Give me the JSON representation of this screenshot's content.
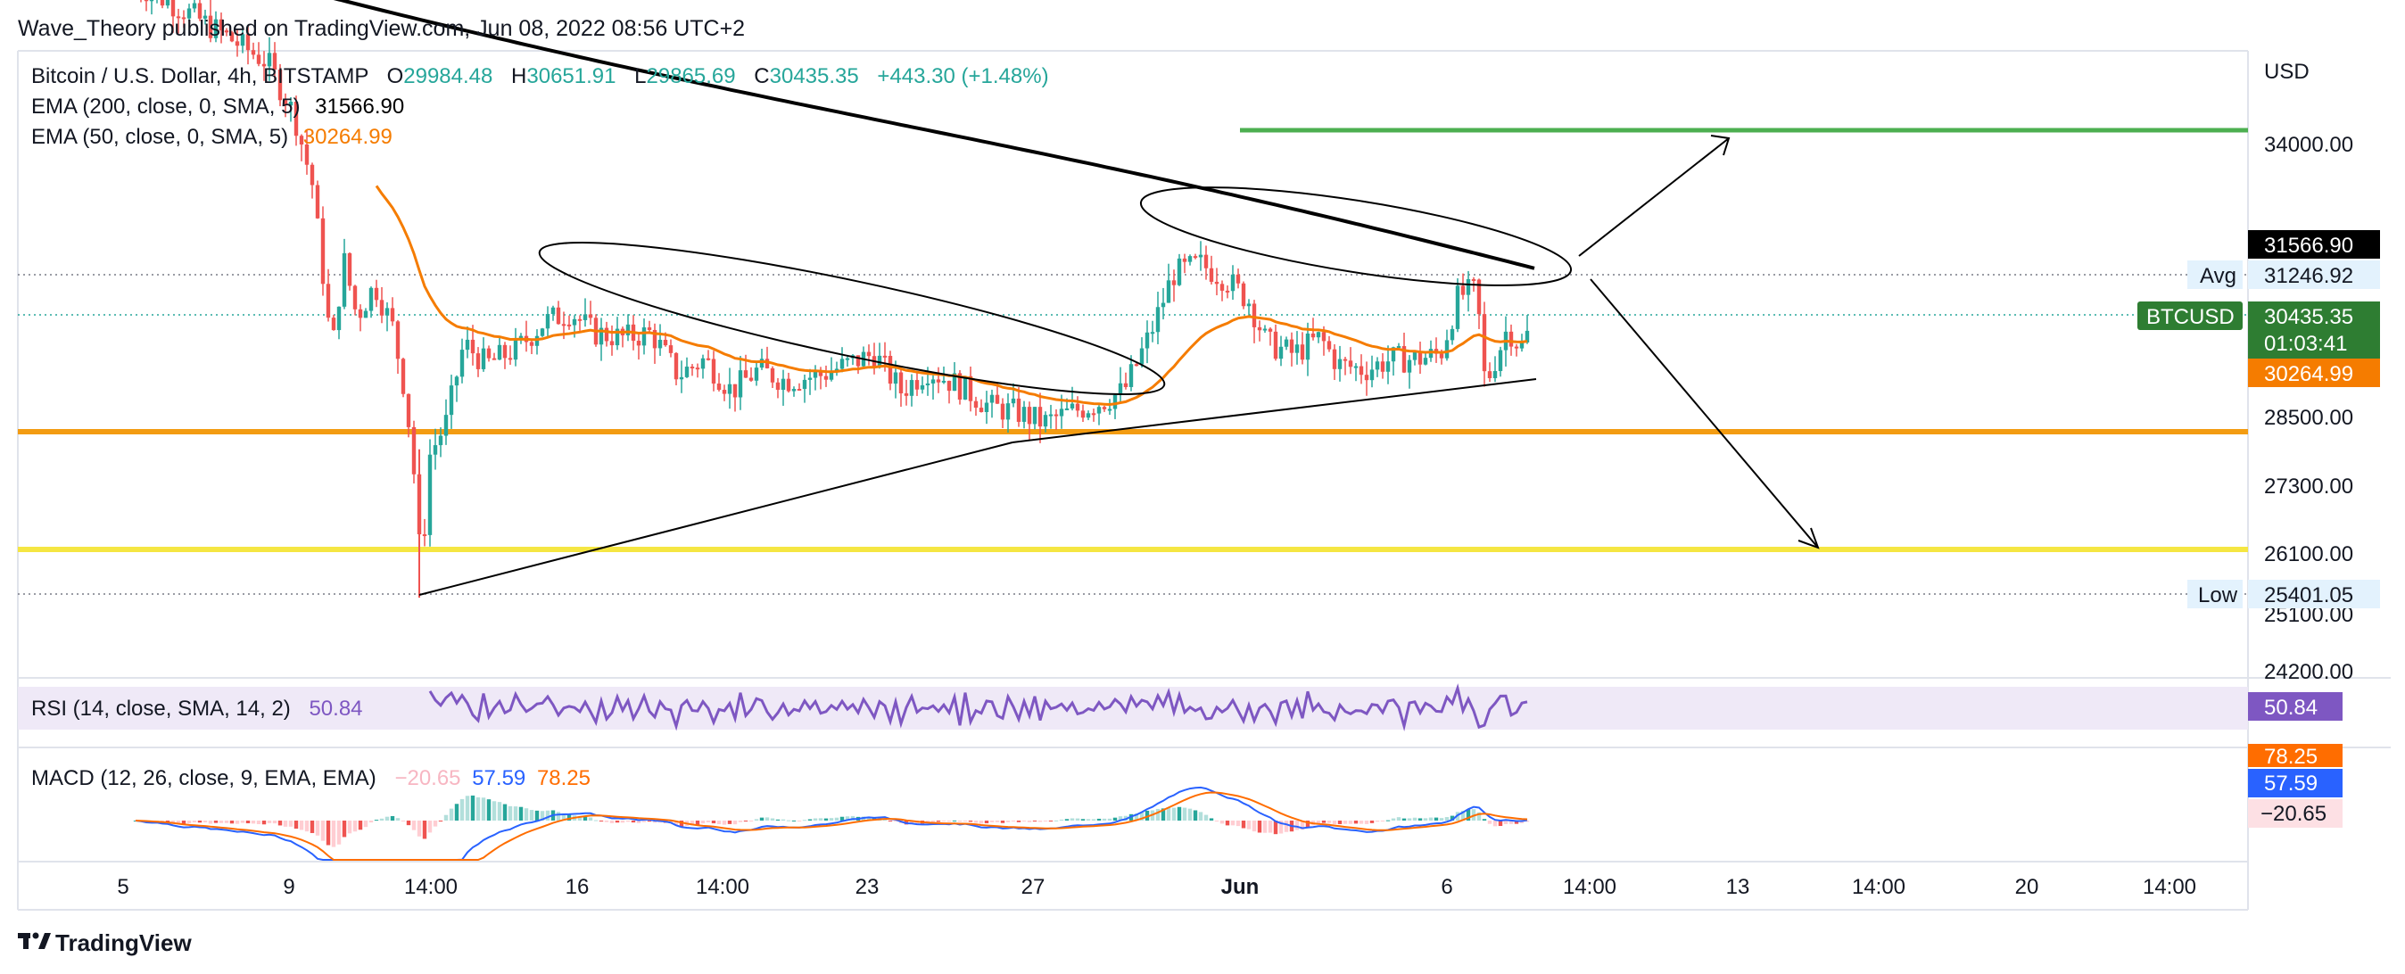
{
  "header": {
    "published_by": "Wave_Theory published on TradingView.com, Jun 08, 2022 08:56 UTC+2"
  },
  "footer": {
    "logo_text": "TradingView"
  },
  "legend": {
    "symbol": "Bitcoin / U.S. Dollar, 4h, BITSTAMP",
    "o_label": "O",
    "o_value": "29984.48",
    "h_label": "H",
    "h_value": "30651.91",
    "l_label": "L",
    "l_value": "29865.69",
    "c_label": "C",
    "c_value": "30435.35",
    "change": "+443.30 (+1.48%)",
    "ema200_label": "EMA (200, close, 0, SMA, 5)",
    "ema200_value": "31566.90",
    "ema50_label": "EMA (50, close, 0, SMA, 5)",
    "ema50_value": "30264.99",
    "rsi_label": "RSI (14, close, SMA, 14, 2)",
    "rsi_value": "50.84",
    "macd_label": "MACD (12, 26, close, 9, EMA, EMA)",
    "macd_hist": "−20.65",
    "macd_line": "57.59",
    "macd_signal": "78.25"
  },
  "price_axis": {
    "currency": "USD",
    "ticks": [
      "34000.00",
      "28500.00",
      "27300.00",
      "26100.00",
      "25100.00",
      "24200.00"
    ],
    "labels": {
      "ema200": "31566.90",
      "avg_tag": "Avg",
      "avg": "31246.92",
      "symbol_tag": "BTCUSD",
      "last": "30435.35",
      "countdown": "01:03:41",
      "ema50": "30264.99",
      "low_tag": "Low",
      "low": "25401.05",
      "rsi": "50.84",
      "macd_signal": "78.25",
      "macd_line": "57.59",
      "macd_hist": "−20.65"
    }
  },
  "time_axis": {
    "ticks": [
      "5",
      "9",
      "14:00",
      "16",
      "14:00",
      "23",
      "27",
      "Jun",
      "6",
      "14:00",
      "13",
      "14:00",
      "20",
      "14:00"
    ]
  },
  "colors": {
    "up": "#26a69a",
    "down": "#ef5350",
    "ema50": "#f57c00",
    "ema200": "#000000",
    "rsi": "#7e57c2",
    "macd": "#2962ff",
    "signal": "#ff6d00",
    "level_orange": "#f39c12",
    "level_yellow": "#f5e642",
    "level_green": "#4caf50"
  },
  "chart_data": {
    "type": "candlestick",
    "symbol": "Bitcoin / U.S. Dollar, 4h, BITSTAMP",
    "timeframe": "4h",
    "ohlc_last": {
      "open": 29984.48,
      "high": 30651.91,
      "low": 29865.69,
      "close": 30435.35,
      "change": 443.3,
      "change_pct": 1.48
    },
    "indicators": {
      "ema200": 31566.9,
      "ema50": 30264.99,
      "rsi": 50.84,
      "macd_hist": -20.65,
      "macd": 57.59,
      "macd_signal": 78.25
    },
    "horizontal_levels": [
      {
        "price": 34200,
        "color": "#4caf50"
      },
      {
        "price": 28390,
        "color": "#f39c12"
      },
      {
        "price": 26150,
        "color": "#f5e642"
      }
    ],
    "avg": 31246.92,
    "low": 25401.05,
    "price_range": [
      24000,
      36000
    ]
  }
}
